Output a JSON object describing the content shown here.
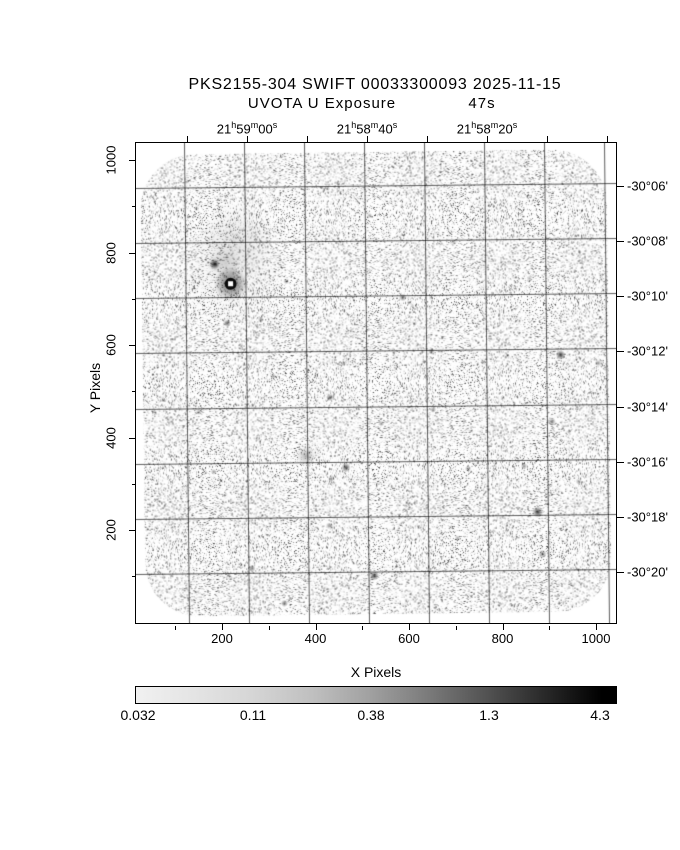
{
  "header": {
    "title": "PKS2155-304 SWIFT 00033300093 2025-11-15",
    "subtitle": "UVOTA U Exposure",
    "exposure": "47s"
  },
  "axes": {
    "x_label": "X Pixels",
    "y_label": "Y Pixels",
    "x_tick_labels": [
      "200",
      "400",
      "600",
      "800",
      "1000"
    ],
    "y_tick_labels": [
      "1000",
      "800",
      "600",
      "400",
      "200"
    ],
    "ra_units": {
      "h": "h",
      "m": "m",
      "s": "s"
    },
    "ra_ticks": [
      {
        "h": "21",
        "m": "59",
        "s": "00"
      },
      {
        "h": "21",
        "m": "58",
        "s": "40"
      },
      {
        "h": "21",
        "m": "58",
        "s": "20"
      }
    ],
    "dec_ticks": [
      "-30°06'",
      "-30°08'",
      "-30°10'",
      "-30°12'",
      "-30°14'",
      "-30°16'",
      "-30°18'",
      "-30°20'"
    ]
  },
  "colorbar": {
    "labels": [
      "0.032",
      "0.11",
      "0.38",
      "1.3",
      "4.3"
    ]
  },
  "chart_data": {
    "type": "heatmap",
    "description": "Swift UVOT U-band sky exposure image: grayscale log-scaled counts, salt-and-pepper background noise over a rounded-corner exposure footprint, overlaid RA/Dec grid, faint point sources, and the bright blazar PKS 2155-304 with a saturated white core ringed in black.",
    "title": "PKS2155-304 SWIFT 00033300093 2025-11-15",
    "subtitle": "UVOTA U Exposure",
    "exposure_time_s": 47,
    "xlabel": "X Pixels",
    "ylabel": "Y Pixels",
    "xlim": [
      0,
      1050
    ],
    "ylim": [
      0,
      1040
    ],
    "x_ticks": [
      200,
      400,
      600,
      800,
      1000
    ],
    "y_ticks": [
      200,
      400,
      600,
      800,
      1000
    ],
    "ra_grid_labels": [
      "21h59m00s",
      "21h58m40s",
      "21h58m20s"
    ],
    "dec_grid_labels": [
      "-30°06'",
      "-30°08'",
      "-30°10'",
      "-30°12'",
      "-30°14'",
      "-30°16'",
      "-30°18'",
      "-30°20'"
    ],
    "colorbar": {
      "scale": "log",
      "tick_values": [
        0.032,
        0.11,
        0.38,
        1.3,
        4.3
      ],
      "min_color": "#f1f1f1",
      "max_color": "#000000"
    },
    "main_source": {
      "x": 221,
      "y": 736,
      "label": "PKS 2155-304",
      "core_r": 6,
      "halo_r": 17
    },
    "halos": [
      {
        "x": 235,
        "y": 830,
        "r": 40,
        "a": 0.1
      },
      {
        "x": 210,
        "y": 782,
        "r": 16,
        "a": 0.18
      },
      {
        "x": 221,
        "y": 760,
        "r": 55,
        "a": 0.06
      },
      {
        "x": 187,
        "y": 779,
        "r": 8,
        "a": 0.2
      }
    ],
    "sources": [
      {
        "x": 187,
        "y": 779,
        "r": 2.4,
        "a": 0.85
      },
      {
        "x": 213,
        "y": 651,
        "r": 1.8,
        "a": 0.6
      },
      {
        "x": 285,
        "y": 658,
        "r": 1.4,
        "a": 0.45
      },
      {
        "x": 378,
        "y": 362,
        "r": 4.5,
        "a": 0.3
      },
      {
        "x": 431,
        "y": 488,
        "r": 1.8,
        "a": 0.55
      },
      {
        "x": 589,
        "y": 702,
        "r": 1.8,
        "a": 0.55
      },
      {
        "x": 649,
        "y": 585,
        "r": 1.6,
        "a": 0.45
      },
      {
        "x": 463,
        "y": 336,
        "r": 2.2,
        "a": 0.7
      },
      {
        "x": 431,
        "y": 312,
        "r": 1.5,
        "a": 0.45
      },
      {
        "x": 521,
        "y": 101,
        "r": 2.2,
        "a": 0.75
      },
      {
        "x": 328,
        "y": 44,
        "r": 1.7,
        "a": 0.55
      },
      {
        "x": 872,
        "y": 235,
        "r": 2.6,
        "a": 0.75
      },
      {
        "x": 881,
        "y": 144,
        "r": 2.0,
        "a": 0.5
      },
      {
        "x": 925,
        "y": 574,
        "r": 2.2,
        "a": 0.8
      },
      {
        "x": 1005,
        "y": 555,
        "r": 1.5,
        "a": 0.45
      },
      {
        "x": 844,
        "y": 334,
        "r": 1.5,
        "a": 0.45
      },
      {
        "x": 724,
        "y": 330,
        "r": 1.5,
        "a": 0.4
      },
      {
        "x": 651,
        "y": 459,
        "r": 1.5,
        "a": 0.4
      },
      {
        "x": 540,
        "y": 430,
        "r": 1.4,
        "a": 0.4
      },
      {
        "x": 310,
        "y": 535,
        "r": 1.4,
        "a": 0.4
      },
      {
        "x": 150,
        "y": 460,
        "r": 1.4,
        "a": 0.35
      },
      {
        "x": 260,
        "y": 120,
        "r": 1.6,
        "a": 0.5
      },
      {
        "x": 425,
        "y": 210,
        "r": 1.4,
        "a": 0.4
      },
      {
        "x": 700,
        "y": 180,
        "r": 1.4,
        "a": 0.35
      },
      {
        "x": 960,
        "y": 300,
        "r": 1.4,
        "a": 0.35
      },
      {
        "x": 540,
        "y": 640,
        "r": 1.3,
        "a": 0.35
      },
      {
        "x": 760,
        "y": 560,
        "r": 1.3,
        "a": 0.3
      },
      {
        "x": 340,
        "y": 740,
        "r": 1.4,
        "a": 0.4
      },
      {
        "x": 460,
        "y": 560,
        "r": 1.3,
        "a": 0.3
      },
      {
        "x": 620,
        "y": 300,
        "r": 1.3,
        "a": 0.35
      },
      {
        "x": 180,
        "y": 330,
        "r": 1.4,
        "a": 0.4
      },
      {
        "x": 905,
        "y": 430,
        "r": 1.8,
        "a": 0.5
      },
      {
        "x": 520,
        "y": 880,
        "r": 1.3,
        "a": 0.35
      },
      {
        "x": 700,
        "y": 820,
        "r": 1.3,
        "a": 0.3
      },
      {
        "x": 860,
        "y": 740,
        "r": 1.3,
        "a": 0.3
      },
      {
        "x": 150,
        "y": 900,
        "r": 1.3,
        "a": 0.3
      },
      {
        "x": 430,
        "y": 940,
        "r": 1.3,
        "a": 0.3
      }
    ]
  }
}
